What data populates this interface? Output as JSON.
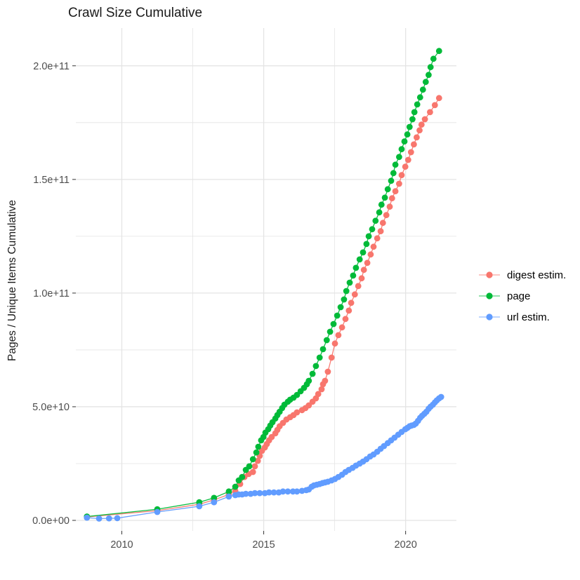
{
  "title": "Crawl Size Cumulative",
  "y_axis_title": "Pages / Unique Items Cumulative",
  "colors": {
    "grid": "#E4E4E4",
    "tick_mark": "#333333",
    "tick_label": "#4D4D4D",
    "title_text": "#1A1A1A",
    "digest": "#F8766D",
    "page": "#00BA38",
    "url": "#619CFF"
  },
  "legend": {
    "items": [
      {
        "label": "digest estim.",
        "color": "#F8766D"
      },
      {
        "label": "page",
        "color": "#00BA38"
      },
      {
        "label": "url estim.",
        "color": "#619CFF"
      }
    ]
  },
  "chart_data": {
    "type": "line",
    "title": "Crawl Size Cumulative",
    "xlabel": "",
    "ylabel": "Pages / Unique Items Cumulative",
    "values_unit": "billions of items (1e9)",
    "grid": true,
    "legend_position": "right",
    "x_domain": [
      2008.38,
      2021.79
    ],
    "y_domain_billions": [
      -4.63,
      216.6
    ],
    "x_ticks": {
      "values": [
        2010,
        2015,
        2020
      ],
      "labels": [
        "2010",
        "2015",
        "2020"
      ],
      "minor": [
        2012.5,
        2017.5
      ]
    },
    "y_ticks": {
      "values_billions": [
        0,
        50,
        100,
        150,
        200
      ],
      "labels": [
        "0.0e+00",
        "5.0e+10",
        "1.0e+11",
        "1.5e+11",
        "2.0e+11"
      ],
      "minor_billions": [
        25,
        75,
        125,
        175
      ]
    },
    "series": [
      {
        "name": "digest estim.",
        "color": "#F8766D",
        "points": [
          [
            2008.77,
            1.5
          ],
          [
            2011.25,
            4.3
          ],
          [
            2012.73,
            7.1
          ],
          [
            2013.25,
            9.0
          ],
          [
            2013.77,
            11.4
          ],
          [
            2014.0,
            13.0
          ],
          [
            2014.17,
            16.0
          ],
          [
            2014.32,
            19.1
          ],
          [
            2014.47,
            20.4
          ],
          [
            2014.62,
            21.3
          ],
          [
            2014.69,
            23.8
          ],
          [
            2014.79,
            26.2
          ],
          [
            2014.86,
            28.4
          ],
          [
            2014.94,
            30.6
          ],
          [
            2015.04,
            32.1
          ],
          [
            2015.11,
            33.6
          ],
          [
            2015.19,
            35.2
          ],
          [
            2015.28,
            36.7
          ],
          [
            2015.41,
            38.3
          ],
          [
            2015.48,
            39.8
          ],
          [
            2015.56,
            41.4
          ],
          [
            2015.68,
            42.9
          ],
          [
            2015.8,
            44.4
          ],
          [
            2015.93,
            45.4
          ],
          [
            2016.05,
            46.3
          ],
          [
            2016.17,
            47.5
          ],
          [
            2016.35,
            48.5
          ],
          [
            2016.47,
            49.4
          ],
          [
            2016.59,
            50.6
          ],
          [
            2016.72,
            52.2
          ],
          [
            2016.84,
            53.7
          ],
          [
            2016.92,
            55.6
          ],
          [
            2017.04,
            57.7
          ],
          [
            2017.09,
            59.9
          ],
          [
            2017.16,
            61.4
          ],
          [
            2017.26,
            65.4
          ],
          [
            2017.39,
            71.6
          ],
          [
            2017.51,
            77.8
          ],
          [
            2017.63,
            81.5
          ],
          [
            2017.76,
            84.9
          ],
          [
            2017.88,
            88.6
          ],
          [
            2018.0,
            92.3
          ],
          [
            2018.08,
            95.7
          ],
          [
            2018.21,
            99.4
          ],
          [
            2018.33,
            103.1
          ],
          [
            2018.45,
            106.5
          ],
          [
            2018.53,
            110.2
          ],
          [
            2018.65,
            113.3
          ],
          [
            2018.77,
            117.0
          ],
          [
            2018.87,
            120.4
          ],
          [
            2019.0,
            124.1
          ],
          [
            2019.12,
            127.2
          ],
          [
            2019.2,
            130.9
          ],
          [
            2019.32,
            134.3
          ],
          [
            2019.44,
            138.0
          ],
          [
            2019.52,
            141.7
          ],
          [
            2019.64,
            144.8
          ],
          [
            2019.77,
            148.1
          ],
          [
            2019.86,
            151.9
          ],
          [
            2019.99,
            155.6
          ],
          [
            2020.09,
            158.6
          ],
          [
            2020.19,
            162.0
          ],
          [
            2020.29,
            165.4
          ],
          [
            2020.39,
            168.5
          ],
          [
            2020.49,
            171.6
          ],
          [
            2020.56,
            174.1
          ],
          [
            2020.68,
            176.5
          ],
          [
            2020.86,
            179.6
          ],
          [
            2021.03,
            182.7
          ],
          [
            2021.18,
            185.8
          ]
        ]
      },
      {
        "name": "page",
        "color": "#00BA38",
        "points": [
          [
            2008.77,
            1.7
          ],
          [
            2011.25,
            4.9
          ],
          [
            2012.73,
            8.0
          ],
          [
            2013.25,
            9.9
          ],
          [
            2013.77,
            12.7
          ],
          [
            2014.0,
            14.8
          ],
          [
            2014.12,
            17.6
          ],
          [
            2014.24,
            19.1
          ],
          [
            2014.37,
            22.2
          ],
          [
            2014.49,
            23.8
          ],
          [
            2014.62,
            26.9
          ],
          [
            2014.74,
            29.9
          ],
          [
            2014.81,
            32.4
          ],
          [
            2014.91,
            35.2
          ],
          [
            2014.99,
            36.7
          ],
          [
            2015.06,
            38.6
          ],
          [
            2015.16,
            40.1
          ],
          [
            2015.23,
            41.7
          ],
          [
            2015.31,
            43.2
          ],
          [
            2015.41,
            44.8
          ],
          [
            2015.48,
            46.3
          ],
          [
            2015.56,
            47.8
          ],
          [
            2015.65,
            49.4
          ],
          [
            2015.73,
            50.9
          ],
          [
            2015.85,
            52.2
          ],
          [
            2015.93,
            53.1
          ],
          [
            2016.05,
            54.0
          ],
          [
            2016.17,
            55.2
          ],
          [
            2016.3,
            56.8
          ],
          [
            2016.42,
            58.3
          ],
          [
            2016.52,
            59.9
          ],
          [
            2016.59,
            61.4
          ],
          [
            2016.72,
            64.5
          ],
          [
            2016.84,
            67.9
          ],
          [
            2016.97,
            71.6
          ],
          [
            2017.09,
            75.3
          ],
          [
            2017.22,
            79.3
          ],
          [
            2017.34,
            83.0
          ],
          [
            2017.46,
            86.4
          ],
          [
            2017.59,
            90.1
          ],
          [
            2017.71,
            93.8
          ],
          [
            2017.83,
            97.2
          ],
          [
            2017.91,
            100.9
          ],
          [
            2018.03,
            104.6
          ],
          [
            2018.15,
            107.7
          ],
          [
            2018.25,
            111.1
          ],
          [
            2018.38,
            114.8
          ],
          [
            2018.5,
            117.9
          ],
          [
            2018.62,
            121.6
          ],
          [
            2018.7,
            125.0
          ],
          [
            2018.82,
            128.1
          ],
          [
            2018.94,
            131.8
          ],
          [
            2019.07,
            135.5
          ],
          [
            2019.15,
            138.9
          ],
          [
            2019.27,
            142.0
          ],
          [
            2019.37,
            145.7
          ],
          [
            2019.49,
            149.4
          ],
          [
            2019.57,
            152.8
          ],
          [
            2019.64,
            156.5
          ],
          [
            2019.77,
            159.9
          ],
          [
            2019.86,
            163.3
          ],
          [
            2019.96,
            166.7
          ],
          [
            2020.06,
            169.8
          ],
          [
            2020.14,
            173.1
          ],
          [
            2020.24,
            176.5
          ],
          [
            2020.31,
            179.6
          ],
          [
            2020.41,
            183.0
          ],
          [
            2020.51,
            186.1
          ],
          [
            2020.61,
            189.5
          ],
          [
            2020.71,
            192.9
          ],
          [
            2020.81,
            196.0
          ],
          [
            2020.88,
            199.4
          ],
          [
            2020.98,
            203.1
          ],
          [
            2021.18,
            206.5
          ]
        ]
      },
      {
        "name": "url estim.",
        "color": "#619CFF",
        "points": [
          [
            2008.77,
            1.2
          ],
          [
            2009.2,
            0.8
          ],
          [
            2009.55,
            0.9
          ],
          [
            2009.84,
            1.0
          ],
          [
            2011.25,
            3.7
          ],
          [
            2012.73,
            6.2
          ],
          [
            2013.25,
            8.0
          ],
          [
            2013.77,
            10.5
          ],
          [
            2014.0,
            11.1
          ],
          [
            2014.12,
            11.4
          ],
          [
            2014.24,
            11.4
          ],
          [
            2014.37,
            11.7
          ],
          [
            2014.54,
            11.7
          ],
          [
            2014.69,
            12.0
          ],
          [
            2014.86,
            12.0
          ],
          [
            2015.04,
            12.0
          ],
          [
            2015.19,
            12.3
          ],
          [
            2015.36,
            12.3
          ],
          [
            2015.53,
            12.3
          ],
          [
            2015.68,
            12.7
          ],
          [
            2015.85,
            12.7
          ],
          [
            2016.03,
            12.7
          ],
          [
            2016.17,
            12.7
          ],
          [
            2016.35,
            13.0
          ],
          [
            2016.5,
            13.3
          ],
          [
            2016.59,
            13.6
          ],
          [
            2016.69,
            14.8
          ],
          [
            2016.77,
            15.4
          ],
          [
            2016.87,
            15.7
          ],
          [
            2016.97,
            16.0
          ],
          [
            2017.07,
            16.4
          ],
          [
            2017.16,
            16.7
          ],
          [
            2017.26,
            17.0
          ],
          [
            2017.39,
            17.6
          ],
          [
            2017.51,
            18.2
          ],
          [
            2017.63,
            19.1
          ],
          [
            2017.76,
            20.1
          ],
          [
            2017.88,
            21.3
          ],
          [
            2018.0,
            22.2
          ],
          [
            2018.13,
            23.1
          ],
          [
            2018.25,
            24.1
          ],
          [
            2018.38,
            25.0
          ],
          [
            2018.5,
            25.9
          ],
          [
            2018.62,
            26.9
          ],
          [
            2018.75,
            28.1
          ],
          [
            2018.87,
            29.0
          ],
          [
            2019.0,
            30.2
          ],
          [
            2019.12,
            31.5
          ],
          [
            2019.24,
            32.7
          ],
          [
            2019.37,
            34.0
          ],
          [
            2019.49,
            35.2
          ],
          [
            2019.61,
            36.4
          ],
          [
            2019.74,
            37.7
          ],
          [
            2019.86,
            38.9
          ],
          [
            2019.99,
            40.1
          ],
          [
            2020.06,
            40.7
          ],
          [
            2020.14,
            41.4
          ],
          [
            2020.21,
            41.7
          ],
          [
            2020.29,
            42.0
          ],
          [
            2020.36,
            42.6
          ],
          [
            2020.44,
            43.8
          ],
          [
            2020.51,
            45.1
          ],
          [
            2020.58,
            46.0
          ],
          [
            2020.66,
            46.9
          ],
          [
            2020.73,
            47.8
          ],
          [
            2020.81,
            49.1
          ],
          [
            2020.88,
            50.0
          ],
          [
            2020.96,
            50.9
          ],
          [
            2021.03,
            51.9
          ],
          [
            2021.1,
            52.8
          ],
          [
            2021.18,
            53.7
          ],
          [
            2021.25,
            54.3
          ]
        ]
      }
    ]
  }
}
